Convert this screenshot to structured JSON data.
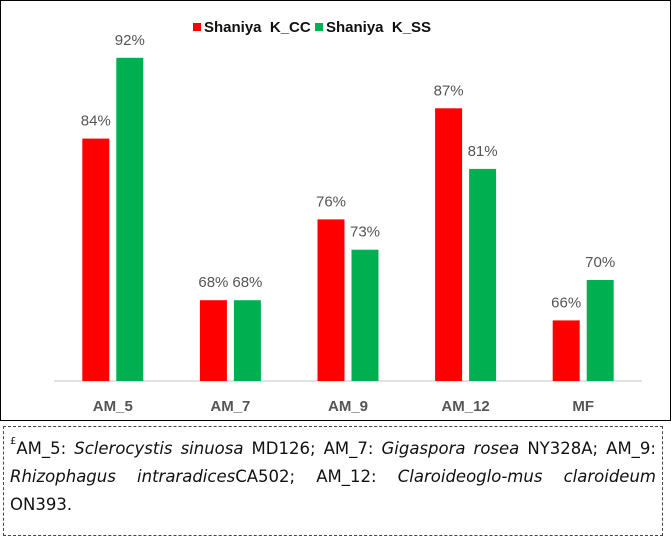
{
  "chart_data": {
    "type": "bar",
    "categories": [
      "AM_5",
      "AM_7",
      "AM_9",
      "AM_12",
      "MF"
    ],
    "series": [
      {
        "name": "Shaniya  K_CC",
        "color": "#ff0000",
        "values": [
          84,
          68,
          76,
          87,
          66
        ],
        "labels": [
          "84%",
          "68%",
          "76%",
          "87%",
          "66%"
        ]
      },
      {
        "name": "Shaniya  K_SS",
        "color": "#00b050",
        "values": [
          92,
          68,
          73,
          81,
          70
        ],
        "labels": [
          "92%",
          "68%",
          "73%",
          "81%",
          "70%"
        ]
      }
    ],
    "ylim": [
      60,
      95
    ],
    "unit": "%",
    "grid": false,
    "legend": "top-center",
    "title": "",
    "xlabel": "",
    "ylabel": ""
  },
  "caption": {
    "mark": "£",
    "parts": [
      {
        "t": "AM_5: ",
        "i": false
      },
      {
        "t": "Sclerocystis sinuosa",
        "i": true
      },
      {
        "t": " MD126; AM_7: ",
        "i": false
      },
      {
        "t": "Gigaspora rosea",
        "i": true
      },
      {
        "t": " NY328A; AM_9: ",
        "i": false
      },
      {
        "t": "Rhizophagus intraradices",
        "i": true
      },
      {
        "t": "CA502; AM_12: ",
        "i": false
      },
      {
        "t": "Claroideoglo-mus claroideum",
        "i": true
      },
      {
        "t": " ON393.",
        "i": false
      }
    ]
  }
}
